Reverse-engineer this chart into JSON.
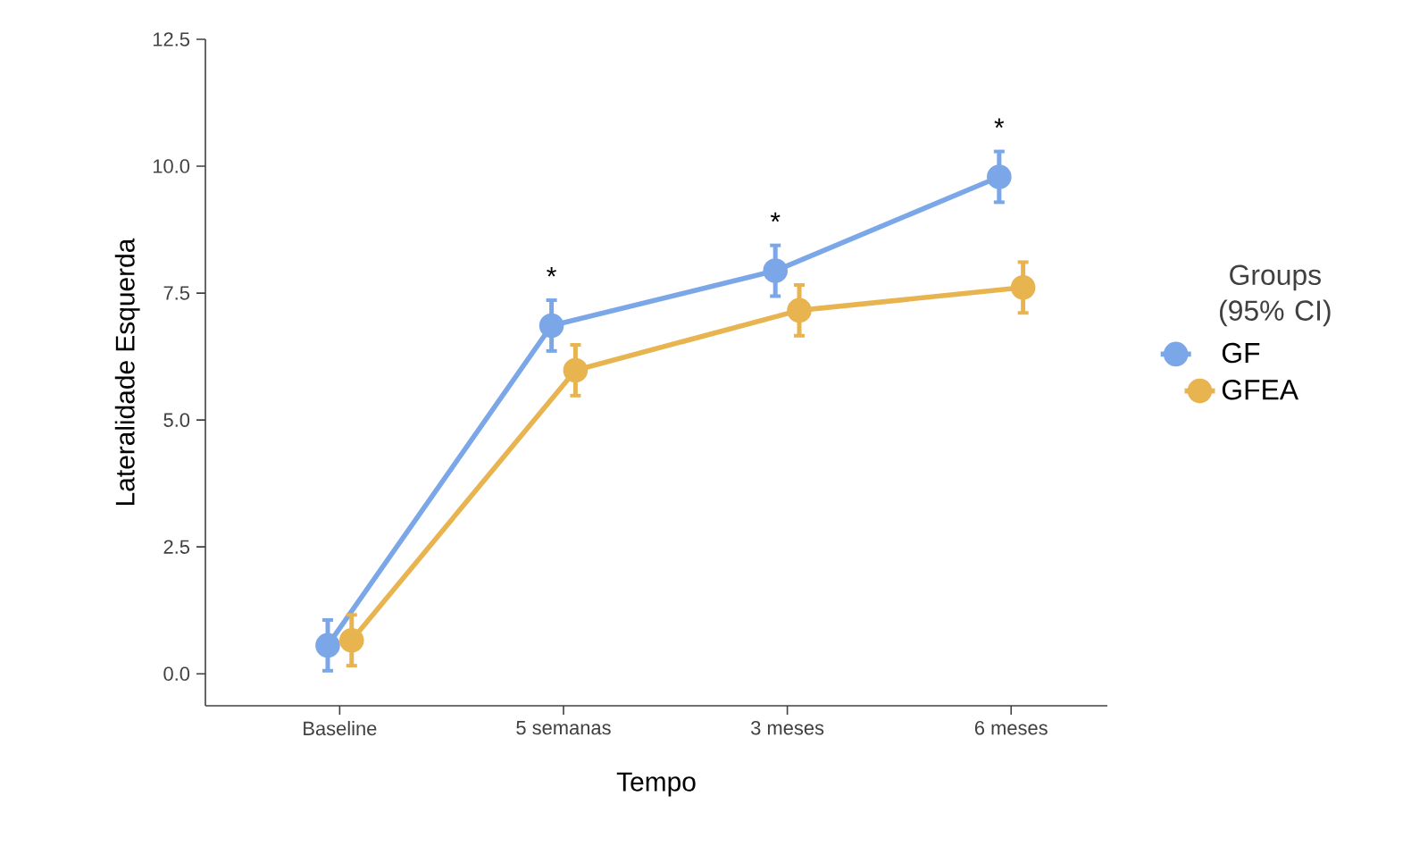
{
  "chart_data": {
    "type": "line",
    "xlabel": "Tempo",
    "ylabel": "Lateralidade Esquerda",
    "legend_title": "Groups (95% CI)",
    "categories": [
      "Baseline",
      "5 semanas",
      "3 meses",
      "6 meses"
    ],
    "series": [
      {
        "name": "GF",
        "color": "#7ba7e8",
        "values": [
          0.56,
          6.86,
          7.94,
          9.79
        ],
        "errors": [
          0.5,
          0.5,
          0.5,
          0.5
        ]
      },
      {
        "name": "GFEA",
        "color": "#e8b44f",
        "values": [
          0.66,
          5.98,
          7.16,
          7.61
        ],
        "errors": [
          0.5,
          0.5,
          0.5,
          0.5
        ]
      }
    ],
    "ylim": [
      -0.63,
      12.5
    ],
    "yticks": [
      {
        "value": 0,
        "label": "0.0"
      },
      {
        "value": 2.5,
        "label": "2.5"
      },
      {
        "value": 5,
        "label": "5.0"
      },
      {
        "value": 7.5,
        "label": "7.5"
      },
      {
        "value": 10,
        "label": "10.0"
      },
      {
        "value": 12.5,
        "label": "12.5"
      }
    ],
    "marker": "circle",
    "line_style": "solid",
    "legend": "right",
    "grid": false,
    "annotations": [
      "*",
      "*",
      "*"
    ]
  }
}
